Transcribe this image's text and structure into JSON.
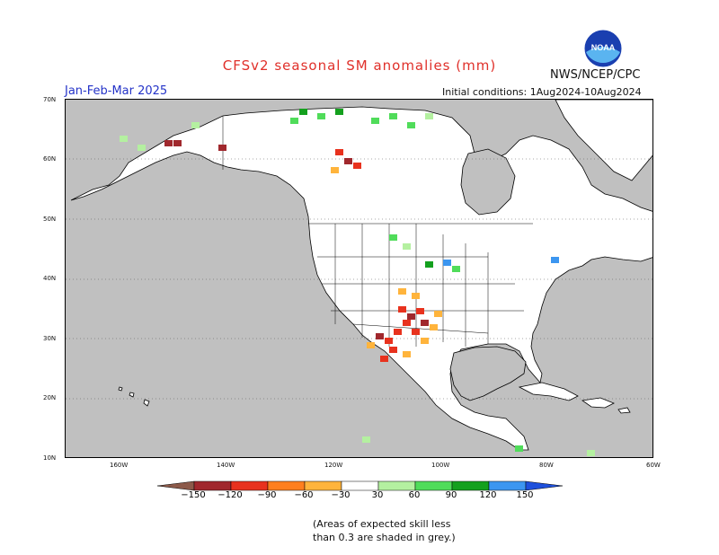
{
  "header": {
    "title": "CFSv2 seasonal SM anomalies (mm)",
    "title_color": "#e0302a",
    "agency": "NWS/NCEP/CPC",
    "season": "Jan-Feb-Mar 2025",
    "season_color": "#2433c8",
    "initial_conditions": "Initial conditions: 1Aug2024-10Aug2024"
  },
  "logo": {
    "icon": "noaa-logo-icon",
    "text": "NOAA"
  },
  "axes": {
    "lat_labels": [
      "70N",
      "60N",
      "50N",
      "40N",
      "30N",
      "20N",
      "10N"
    ],
    "lon_labels": [
      "160W",
      "140W",
      "120W",
      "100W",
      "80W",
      "60W"
    ]
  },
  "legend": {
    "labels": [
      "−150",
      "−120",
      "−90",
      "−60",
      "−30",
      "30",
      "60",
      "90",
      "120",
      "150"
    ],
    "colors": [
      "#8c5a4a",
      "#a0282d",
      "#e8321e",
      "#ff7f1e",
      "#ffb43c",
      "#ffffff",
      "#b4f0a0",
      "#50dc5a",
      "#14a01e",
      "#3c96f0",
      "#1e50dc"
    ]
  },
  "map_colors": {
    "land": "#ffffff",
    "ocean": "#c0c0c0",
    "low_skill": "#c0c0c0",
    "dry_strong": "#a0282d",
    "dry_moderate": "#e8321e",
    "dry_weak": "#ffb43c",
    "wet_weak": "#b4f0a0",
    "wet_moderate": "#50dc5a",
    "wet_strong": "#14a01e",
    "wet_very_strong": "#3c96f0"
  },
  "note": {
    "line1": "(Areas of expected skill less",
    "line2": "than 0.3 are shaded in grey.)"
  }
}
